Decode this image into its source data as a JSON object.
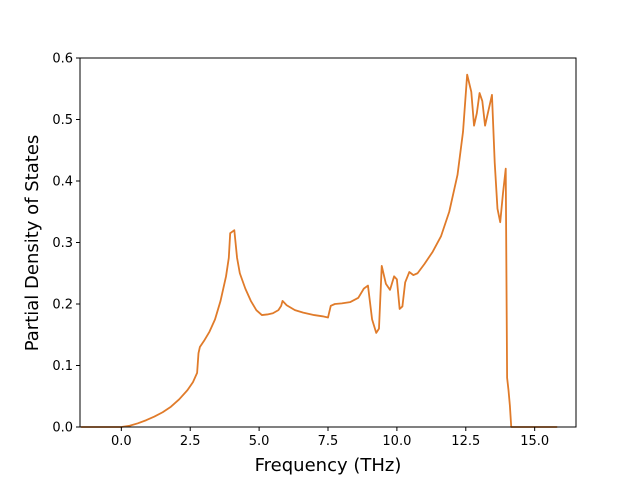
{
  "chart_data": {
    "type": "line",
    "title": "",
    "xlabel": "Frequency (THz)",
    "ylabel": "Partial Density of States",
    "xlim": [
      -1.5,
      16.5
    ],
    "ylim": [
      0.0,
      0.6
    ],
    "xticks": [
      0.0,
      2.5,
      5.0,
      7.5,
      10.0,
      12.5,
      15.0
    ],
    "xtick_labels": [
      "0.0",
      "2.5",
      "5.0",
      "7.5",
      "10.0",
      "12.5",
      "15.0"
    ],
    "yticks": [
      0.0,
      0.1,
      0.2,
      0.3,
      0.4,
      0.5,
      0.6
    ],
    "ytick_labels": [
      "0.0",
      "0.1",
      "0.2",
      "0.3",
      "0.4",
      "0.5",
      "0.6"
    ],
    "grid": false,
    "legend": false,
    "series": [
      {
        "color": "#e07b2a",
        "x": [
          -1.45,
          -0.5,
          0.0,
          0.3,
          0.6,
          0.9,
          1.2,
          1.5,
          1.8,
          2.1,
          2.4,
          2.6,
          2.75,
          2.8,
          2.85,
          3.0,
          3.2,
          3.4,
          3.6,
          3.8,
          3.9,
          3.95,
          4.1,
          4.2,
          4.3,
          4.5,
          4.7,
          4.9,
          5.1,
          5.3,
          5.5,
          5.7,
          5.8,
          5.85,
          6.0,
          6.3,
          6.6,
          7.0,
          7.3,
          7.5,
          7.6,
          7.75,
          8.0,
          8.3,
          8.6,
          8.8,
          8.95,
          9.1,
          9.25,
          9.35,
          9.45,
          9.6,
          9.75,
          9.9,
          10.0,
          10.1,
          10.2,
          10.3,
          10.45,
          10.6,
          10.75,
          11.0,
          11.3,
          11.6,
          11.9,
          12.2,
          12.4,
          12.55,
          12.7,
          12.8,
          12.9,
          13.0,
          13.1,
          13.2,
          13.3,
          13.45,
          13.55,
          13.65,
          13.75,
          13.85,
          13.95,
          14.0,
          14.05,
          14.1,
          14.15,
          14.3,
          14.45,
          15.0,
          15.8
        ],
        "y": [
          0.0,
          0.0,
          0.0,
          0.002,
          0.006,
          0.011,
          0.017,
          0.024,
          0.033,
          0.045,
          0.06,
          0.073,
          0.088,
          0.12,
          0.13,
          0.14,
          0.155,
          0.175,
          0.205,
          0.245,
          0.275,
          0.315,
          0.32,
          0.275,
          0.25,
          0.225,
          0.205,
          0.19,
          0.182,
          0.183,
          0.185,
          0.19,
          0.197,
          0.205,
          0.198,
          0.19,
          0.186,
          0.182,
          0.18,
          0.178,
          0.197,
          0.2,
          0.201,
          0.203,
          0.21,
          0.225,
          0.23,
          0.175,
          0.153,
          0.16,
          0.262,
          0.233,
          0.223,
          0.245,
          0.24,
          0.192,
          0.196,
          0.235,
          0.252,
          0.247,
          0.25,
          0.265,
          0.285,
          0.31,
          0.35,
          0.41,
          0.48,
          0.573,
          0.545,
          0.49,
          0.51,
          0.543,
          0.53,
          0.49,
          0.51,
          0.54,
          0.43,
          0.355,
          0.333,
          0.38,
          0.42,
          0.08,
          0.06,
          0.035,
          0.0,
          0.0,
          0.0,
          0.0,
          0.0
        ]
      }
    ]
  }
}
